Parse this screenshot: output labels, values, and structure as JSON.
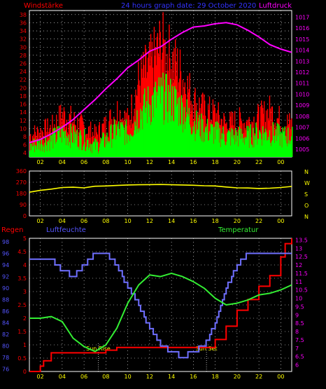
{
  "header": {
    "left": "Windstärke",
    "center": "24 hours graph date: 29 October 2020",
    "right": "Luftdruck"
  },
  "bottom_header": {
    "left1": "Regen",
    "left2": "Luftfeuchte",
    "right": "Temperatur"
  },
  "colors": {
    "gust": "#ff0000",
    "wind": "#00ff00",
    "pressure": "#ff00ff",
    "direction": "#ffff00",
    "rain": "#ff0000",
    "humidity": "#6f6fff",
    "temperature": "#33ee33",
    "axis_text_red": "#ff0000",
    "axis_text_blue": "#5555ff",
    "axis_text_yellow": "#ffff00",
    "axis_text_magenta": "#ff00ff",
    "grid": "#ffffff"
  },
  "chart_data": [
    {
      "type": "bar",
      "id": "wind",
      "title": "24 hours graph date: 29 October 2020",
      "x_ticks": [
        "02",
        "04",
        "06",
        "08",
        "10",
        "12",
        "14",
        "16",
        "18",
        "20",
        "22",
        "00"
      ],
      "x_start_hour": 1,
      "x_end_hour": 25,
      "y_left": {
        "label": "Windstärke",
        "ticks": [
          4,
          6,
          8,
          10,
          12,
          14,
          16,
          18,
          20,
          22,
          24,
          26,
          28,
          30,
          32,
          34,
          36,
          38
        ],
        "ylim": [
          3,
          39
        ]
      },
      "y_right": {
        "label": "Luftdruck",
        "ticks": [
          1005,
          1006,
          1007,
          1008,
          1009,
          1010,
          1011,
          1012,
          1013,
          1014,
          1015,
          1016,
          1017
        ],
        "ylim": [
          1004.3,
          1017.6
        ]
      },
      "series": [
        {
          "name": "gust",
          "kind": "bar",
          "x": [
            1,
            2,
            3,
            4,
            5,
            6,
            7,
            8,
            9,
            10,
            11,
            12,
            13,
            14,
            15,
            16,
            17,
            18,
            19,
            20,
            21,
            22,
            23,
            24,
            25
          ],
          "values": [
            10,
            11,
            12,
            16,
            14,
            12,
            10,
            13,
            17,
            14,
            26,
            30,
            36,
            32,
            27,
            20,
            17,
            16,
            13,
            14,
            14,
            15,
            17,
            14,
            13
          ]
        },
        {
          "name": "wind",
          "kind": "bar",
          "x": [
            1,
            2,
            3,
            4,
            5,
            6,
            7,
            8,
            9,
            10,
            11,
            12,
            13,
            14,
            15,
            16,
            17,
            18,
            19,
            20,
            21,
            22,
            23,
            24,
            25
          ],
          "values": [
            7,
            8,
            9,
            11,
            10,
            9,
            7,
            9,
            12,
            11,
            17,
            20,
            22,
            21,
            18,
            14,
            12,
            11,
            10,
            10,
            10,
            11,
            11,
            10,
            10
          ]
        },
        {
          "name": "Luftdruck",
          "kind": "line",
          "x": [
            1,
            2,
            3,
            4,
            5,
            6,
            7,
            8,
            9,
            10,
            11,
            12,
            13,
            14,
            15,
            16,
            17,
            18,
            19,
            20,
            21,
            22,
            23,
            24,
            25
          ],
          "values": [
            1005.6,
            1005.9,
            1006.4,
            1007.0,
            1007.7,
            1008.6,
            1009.5,
            1010.5,
            1011.4,
            1012.4,
            1013.1,
            1013.9,
            1014.3,
            1015.0,
            1015.6,
            1016.1,
            1016.2,
            1016.4,
            1016.5,
            1016.3,
            1015.8,
            1015.2,
            1014.5,
            1014.1,
            1013.8
          ]
        }
      ]
    },
    {
      "type": "line",
      "id": "direction",
      "x_ticks": [
        "02",
        "04",
        "06",
        "08",
        "10",
        "12",
        "14",
        "16",
        "18",
        "20",
        "22",
        "00"
      ],
      "y_left": {
        "ticks": [
          0,
          90,
          180,
          270,
          360
        ],
        "ylim": [
          0,
          360
        ]
      },
      "y_right_labels": [
        "N",
        "W",
        "S",
        "O",
        "N"
      ],
      "series": [
        {
          "name": "direction",
          "x": [
            1,
            2,
            3,
            4,
            5,
            6,
            7,
            8,
            9,
            10,
            11,
            12,
            13,
            14,
            15,
            16,
            17,
            18,
            19,
            20,
            21,
            22,
            23,
            24,
            25
          ],
          "values": [
            190,
            205,
            215,
            228,
            230,
            225,
            238,
            240,
            244,
            248,
            250,
            251,
            252,
            250,
            248,
            246,
            242,
            240,
            232,
            225,
            224,
            220,
            222,
            228,
            236
          ]
        }
      ]
    },
    {
      "type": "line",
      "id": "climate",
      "x_ticks": [
        "02",
        "04",
        "06",
        "08",
        "10",
        "12",
        "14",
        "16",
        "18",
        "20",
        "22",
        "00"
      ],
      "y_left1": {
        "label": "Regen",
        "ticks": [
          0,
          0.5,
          1,
          1.5,
          2,
          2.5,
          3,
          3.5,
          4,
          4.5,
          5
        ],
        "ylim": [
          0,
          5
        ]
      },
      "y_left2": {
        "label": "Luftfeuchte",
        "ticks": [
          76,
          78,
          80,
          82,
          84,
          86,
          88,
          90,
          92,
          94,
          96,
          98
        ],
        "ylim": [
          75.6,
          98.6
        ]
      },
      "y_right": {
        "label": "Temperatur",
        "ticks": [
          6,
          6.5,
          7,
          7.5,
          8,
          8.5,
          9,
          9.5,
          10,
          10.5,
          11,
          11.5,
          12,
          12.5,
          13,
          13.5
        ],
        "ylim": [
          5.6,
          13.6
        ]
      },
      "annotations": [
        {
          "text": "Sun Rise",
          "x": 7.3
        },
        {
          "text": "Sun Set",
          "x": 17.2
        }
      ],
      "series": [
        {
          "name": "Regen",
          "x": [
            1,
            1.7,
            2,
            2.3,
            3,
            4,
            5,
            6,
            7,
            8,
            9,
            10,
            11,
            12,
            13,
            14,
            15,
            16,
            17,
            18,
            19,
            20,
            21,
            22,
            23,
            24,
            24.4,
            25
          ],
          "values": [
            0,
            0,
            0.2,
            0.4,
            0.7,
            0.7,
            0.7,
            0.7,
            0.7,
            0.8,
            0.9,
            0.9,
            0.9,
            0.9,
            0.9,
            0.9,
            0.9,
            0.9,
            0.9,
            1.2,
            1.7,
            2.3,
            2.7,
            3.2,
            3.6,
            4.3,
            4.8,
            5.0
          ]
        },
        {
          "name": "Luftfeuchte",
          "x": [
            1,
            2,
            3,
            4,
            5,
            6,
            7,
            8,
            9,
            10,
            11,
            12,
            13,
            14,
            15,
            16,
            17,
            18,
            19,
            20,
            21,
            22,
            23,
            24,
            25
          ],
          "values": [
            95,
            95,
            95,
            93,
            92,
            94,
            96,
            96,
            94,
            90,
            87,
            83,
            80,
            79,
            78,
            79,
            80,
            84,
            90,
            94,
            96,
            96,
            96,
            96,
            96
          ]
        },
        {
          "name": "Temperatur",
          "x": [
            1,
            2,
            3,
            4,
            5,
            6,
            7,
            8,
            9,
            10,
            11,
            12,
            13,
            14,
            15,
            16,
            17,
            18,
            19,
            20,
            21,
            22,
            23,
            24,
            25
          ],
          "values": [
            8.8,
            8.8,
            8.9,
            8.6,
            7.6,
            7.1,
            6.8,
            7.2,
            8.2,
            9.7,
            10.8,
            11.4,
            11.3,
            11.5,
            11.3,
            11.0,
            10.6,
            10.0,
            9.6,
            9.7,
            9.9,
            10.2,
            10.3,
            10.5,
            10.8
          ]
        }
      ]
    }
  ]
}
